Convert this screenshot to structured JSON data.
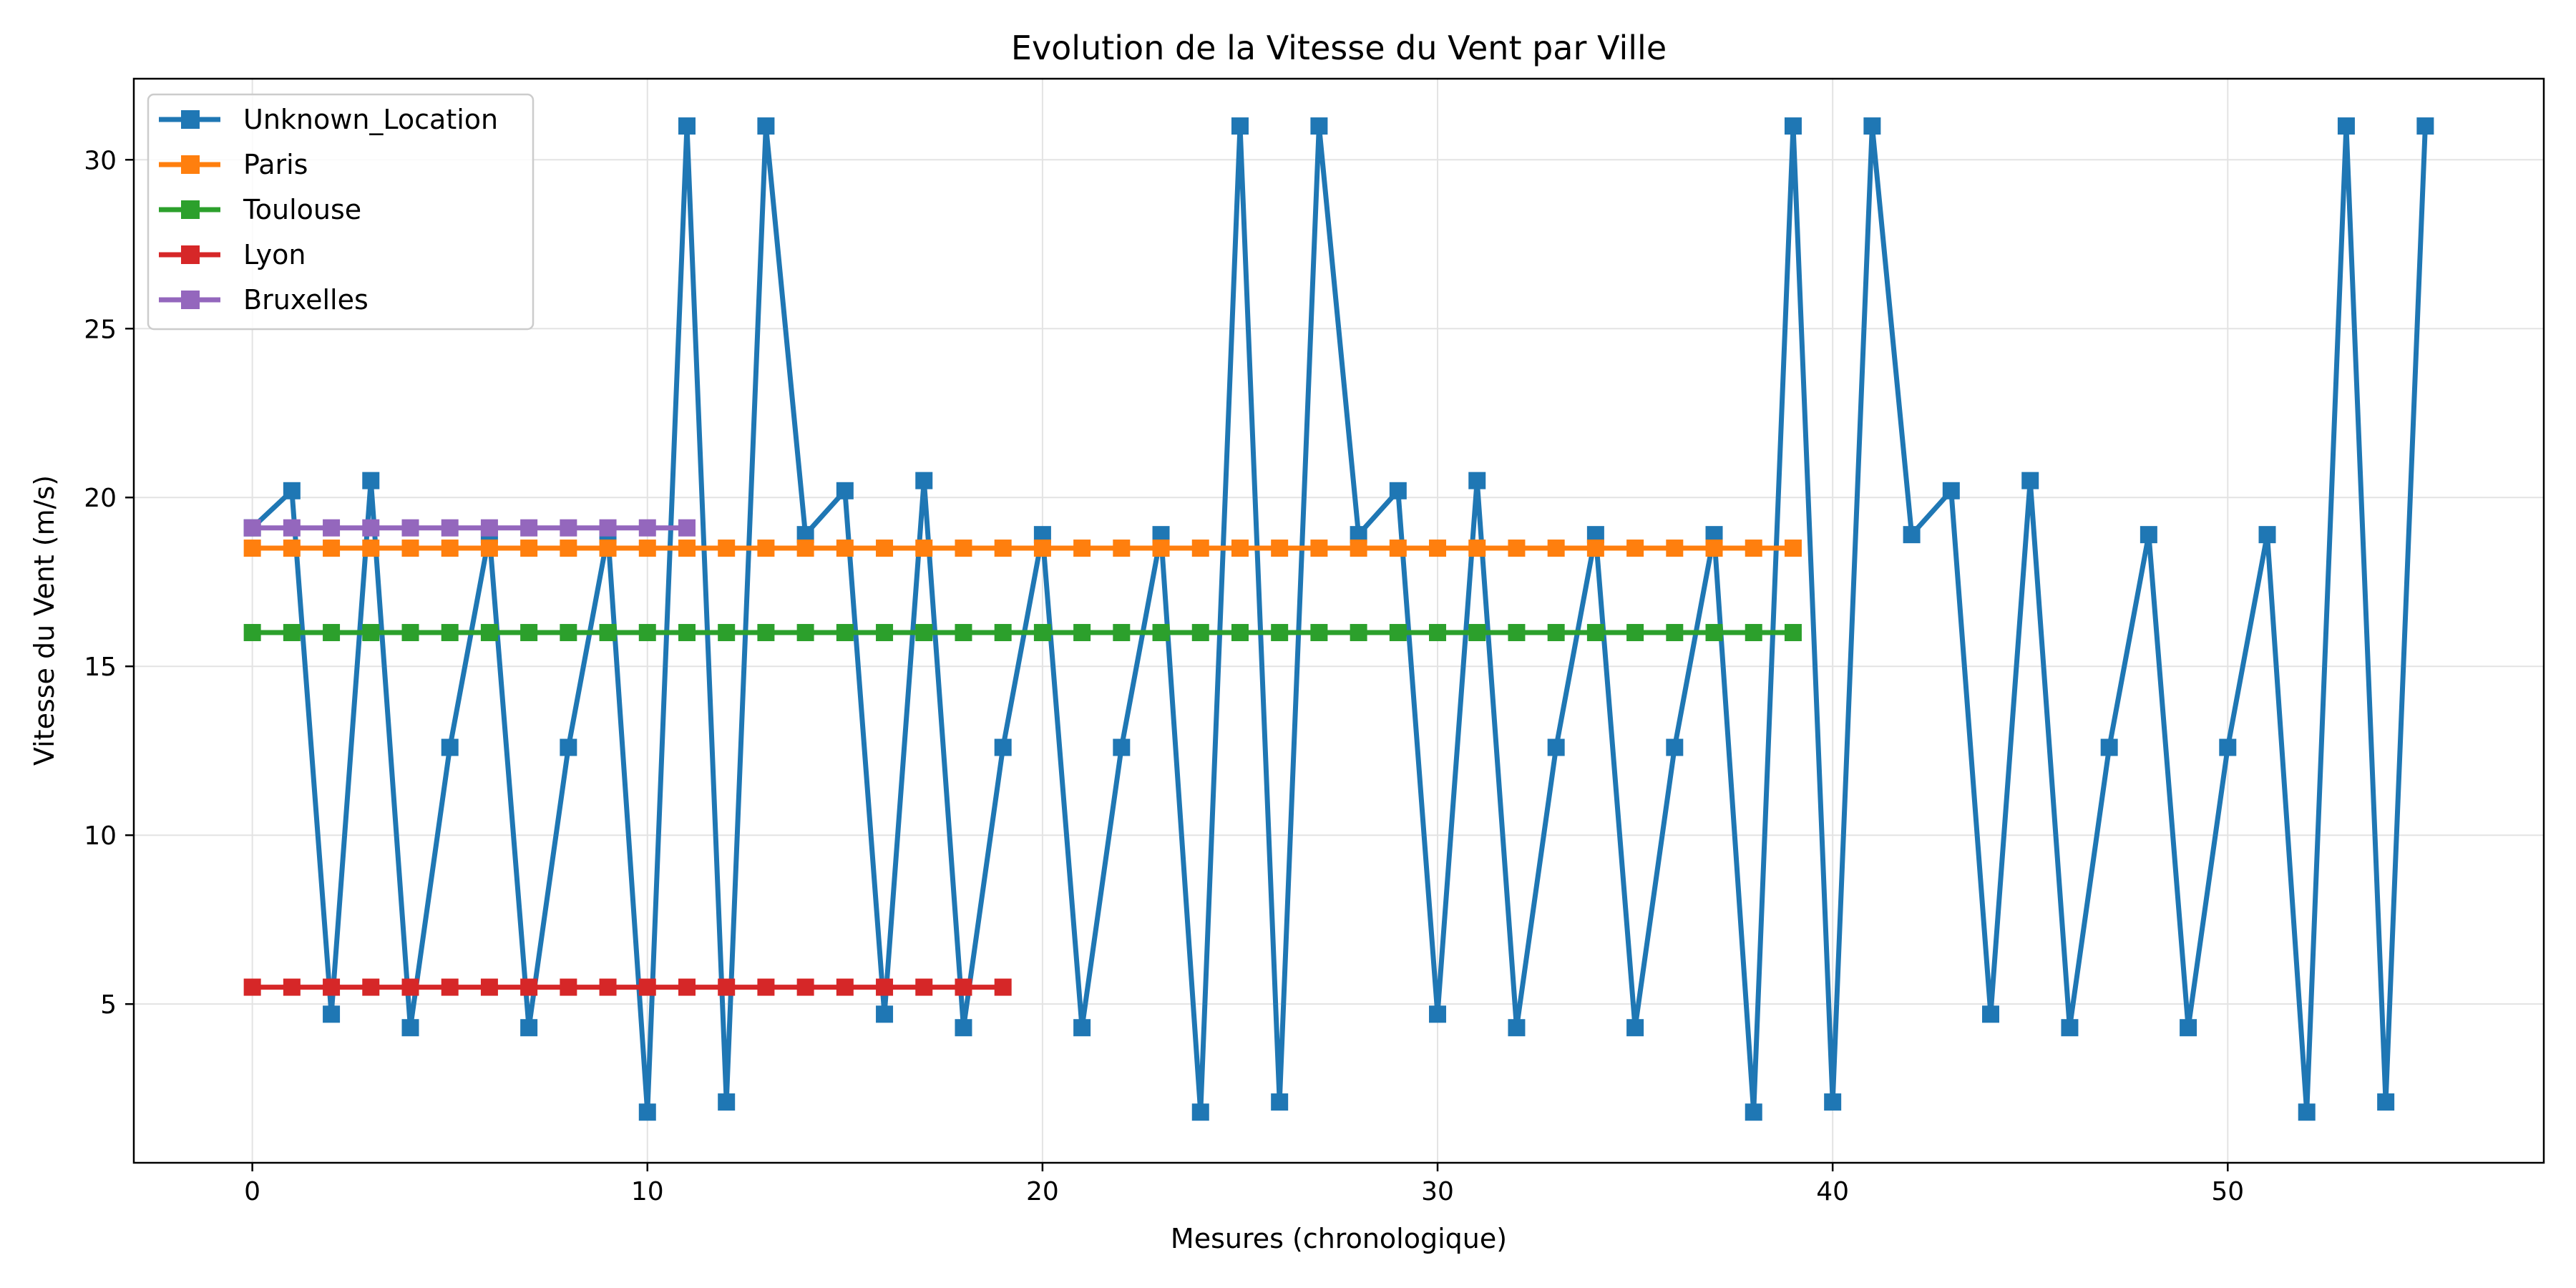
{
  "chart_data": {
    "type": "line",
    "title": "Evolution de la Vitesse du Vent par Ville",
    "xlabel": "Mesures (chronologique)",
    "ylabel": "Vitesse du Vent (m/s)",
    "xlim": [
      -3,
      58
    ],
    "ylim": [
      0.3,
      32.4
    ],
    "xticks": [
      0,
      10,
      20,
      30,
      40,
      50
    ],
    "yticks": [
      5,
      10,
      15,
      20,
      25,
      30
    ],
    "grid": true,
    "legend_position": "top-left",
    "marker": "square",
    "series": [
      {
        "name": "Unknown_Location",
        "color": "#1f77b4",
        "x": [
          0,
          1,
          2,
          3,
          4,
          5,
          6,
          7,
          8,
          9,
          10,
          11,
          12,
          13,
          14,
          15,
          16,
          17,
          18,
          19,
          20,
          21,
          22,
          23,
          24,
          25,
          26,
          27,
          28,
          29,
          30,
          31,
          32,
          33,
          34,
          35,
          36,
          37,
          38,
          39,
          40,
          41,
          42,
          43,
          44,
          45,
          46,
          47,
          48,
          49,
          50,
          51,
          52,
          53,
          54,
          55
        ],
        "values": [
          19.1,
          20.2,
          4.7,
          20.5,
          4.3,
          12.6,
          18.9,
          4.3,
          12.6,
          18.9,
          1.8,
          31.0,
          2.1,
          31.0,
          18.9,
          20.2,
          4.7,
          20.5,
          4.3,
          12.6,
          18.9,
          4.3,
          12.6,
          18.9,
          1.8,
          31.0,
          2.1,
          31.0,
          18.9,
          20.2,
          4.7,
          20.5,
          4.3,
          12.6,
          18.9,
          4.3,
          12.6,
          18.9,
          1.8,
          31.0,
          2.1,
          31.0,
          18.9,
          20.2,
          4.7,
          20.5,
          4.3,
          12.6,
          18.9,
          4.3,
          12.6,
          18.9,
          1.8,
          31.0,
          2.1,
          31.0
        ]
      },
      {
        "name": "Paris",
        "color": "#ff7f0e",
        "x": [
          0,
          1,
          2,
          3,
          4,
          5,
          6,
          7,
          8,
          9,
          10,
          11,
          12,
          13,
          14,
          15,
          16,
          17,
          18,
          19,
          20,
          21,
          22,
          23,
          24,
          25,
          26,
          27,
          28,
          29,
          30,
          31,
          32,
          33,
          34,
          35,
          36,
          37,
          38,
          39
        ],
        "values": [
          18.5,
          18.5,
          18.5,
          18.5,
          18.5,
          18.5,
          18.5,
          18.5,
          18.5,
          18.5,
          18.5,
          18.5,
          18.5,
          18.5,
          18.5,
          18.5,
          18.5,
          18.5,
          18.5,
          18.5,
          18.5,
          18.5,
          18.5,
          18.5,
          18.5,
          18.5,
          18.5,
          18.5,
          18.5,
          18.5,
          18.5,
          18.5,
          18.5,
          18.5,
          18.5,
          18.5,
          18.5,
          18.5,
          18.5,
          18.5
        ]
      },
      {
        "name": "Toulouse",
        "color": "#2ca02c",
        "x": [
          0,
          1,
          2,
          3,
          4,
          5,
          6,
          7,
          8,
          9,
          10,
          11,
          12,
          13,
          14,
          15,
          16,
          17,
          18,
          19,
          20,
          21,
          22,
          23,
          24,
          25,
          26,
          27,
          28,
          29,
          30,
          31,
          32,
          33,
          34,
          35,
          36,
          37,
          38,
          39
        ],
        "values": [
          16.0,
          16.0,
          16.0,
          16.0,
          16.0,
          16.0,
          16.0,
          16.0,
          16.0,
          16.0,
          16.0,
          16.0,
          16.0,
          16.0,
          16.0,
          16.0,
          16.0,
          16.0,
          16.0,
          16.0,
          16.0,
          16.0,
          16.0,
          16.0,
          16.0,
          16.0,
          16.0,
          16.0,
          16.0,
          16.0,
          16.0,
          16.0,
          16.0,
          16.0,
          16.0,
          16.0,
          16.0,
          16.0,
          16.0,
          16.0
        ]
      },
      {
        "name": "Lyon",
        "color": "#d62728",
        "x": [
          0,
          1,
          2,
          3,
          4,
          5,
          6,
          7,
          8,
          9,
          10,
          11,
          12,
          13,
          14,
          15,
          16,
          17,
          18,
          19
        ],
        "values": [
          5.5,
          5.5,
          5.5,
          5.5,
          5.5,
          5.5,
          5.5,
          5.5,
          5.5,
          5.5,
          5.5,
          5.5,
          5.5,
          5.5,
          5.5,
          5.5,
          5.5,
          5.5,
          5.5,
          5.5
        ]
      },
      {
        "name": "Bruxelles",
        "color": "#9467bd",
        "x": [
          0,
          1,
          2,
          3,
          4,
          5,
          6,
          7,
          8,
          9,
          10,
          11
        ],
        "values": [
          19.1,
          19.1,
          19.1,
          19.1,
          19.1,
          19.1,
          19.1,
          19.1,
          19.1,
          19.1,
          19.1,
          19.1
        ]
      }
    ]
  }
}
